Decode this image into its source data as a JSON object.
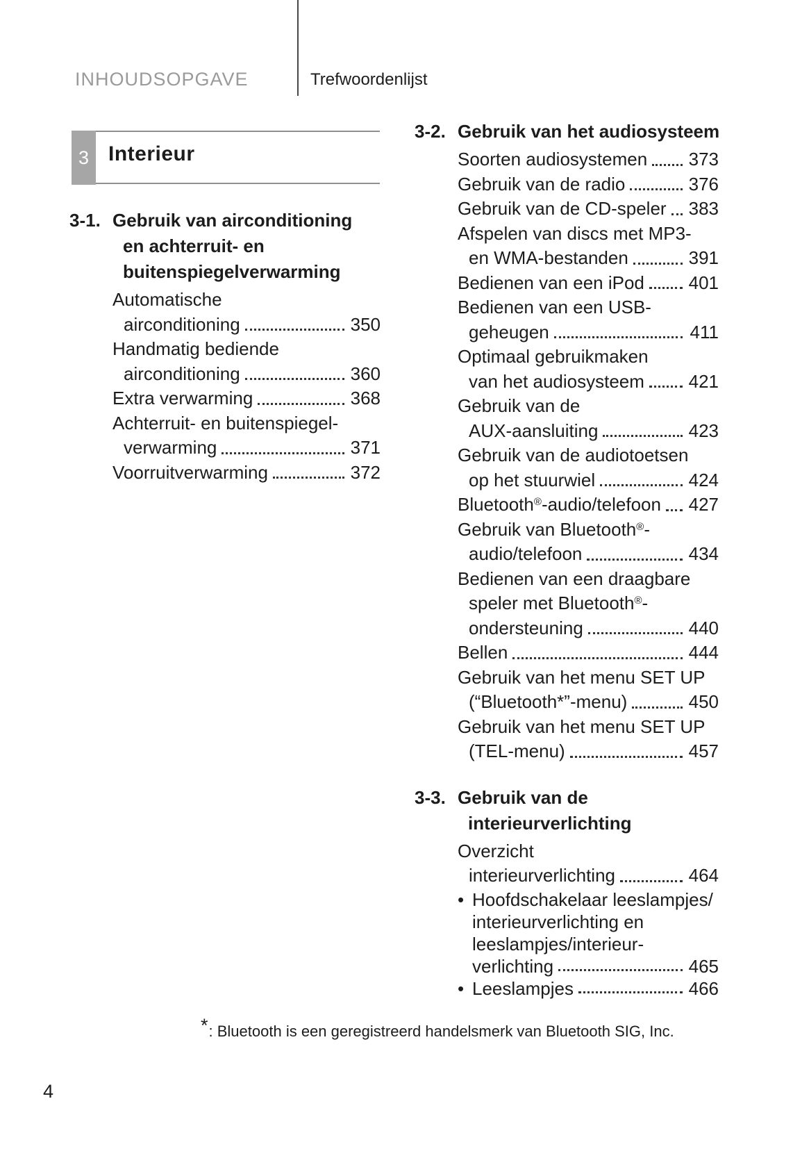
{
  "header": {
    "section_label": "INHOUDSOPGAVE",
    "page_label": "Trefwoordenlijst"
  },
  "chapter_tab": {
    "number": "3",
    "title": "Interieur"
  },
  "sections": [
    {
      "id": "3-1.",
      "title_lines": [
        "Gebruik van airconditioning",
        "en achterruit- en",
        "buitenspiegelverwarming"
      ],
      "entries": [
        {
          "lines": [
            "Automatische",
            "airconditioning"
          ],
          "page": "350"
        },
        {
          "lines": [
            "Handmatig bediende",
            "airconditioning"
          ],
          "page": "360"
        },
        {
          "lines": [
            "Extra verwarming"
          ],
          "page": "368"
        },
        {
          "lines": [
            "Achterruit- en buitenspiegel-",
            "verwarming"
          ],
          "page": "371"
        },
        {
          "lines": [
            "Voorruitverwarming"
          ],
          "page": "372"
        }
      ]
    },
    {
      "id": "3-2.",
      "title_lines": [
        "Gebruik van het audiosysteem"
      ],
      "entries": [
        {
          "lines": [
            "Soorten audiosystemen"
          ],
          "page": "373"
        },
        {
          "lines": [
            "Gebruik van de radio"
          ],
          "page": "376"
        },
        {
          "lines": [
            "Gebruik van de CD-speler"
          ],
          "page": "383"
        },
        {
          "lines": [
            "Afspelen van discs met MP3-",
            "en WMA-bestanden"
          ],
          "page": "391"
        },
        {
          "lines": [
            "Bedienen van een iPod"
          ],
          "page": "401"
        },
        {
          "lines": [
            "Bedienen van een USB-",
            "geheugen"
          ],
          "page": "411"
        },
        {
          "lines": [
            "Optimaal gebruikmaken",
            "van het audiosysteem"
          ],
          "page": "421"
        },
        {
          "lines": [
            "Gebruik van de",
            "AUX-aansluiting"
          ],
          "page": "423"
        },
        {
          "lines": [
            "Gebruik van de audiotoetsen",
            "op het stuurwiel"
          ],
          "page": "424"
        },
        {
          "lines": [
            "Bluetooth®-audio/telefoon"
          ],
          "page": "427"
        },
        {
          "lines": [
            "Gebruik van Bluetooth®-",
            "audio/telefoon"
          ],
          "page": "434"
        },
        {
          "lines": [
            "Bedienen van een draagbare",
            "speler met Bluetooth®-",
            "ondersteuning"
          ],
          "page": "440"
        },
        {
          "lines": [
            "Bellen"
          ],
          "page": "444"
        },
        {
          "lines": [
            "Gebruik van het menu SET UP",
            "(“Bluetooth*”-menu)"
          ],
          "page": "450"
        },
        {
          "lines": [
            "Gebruik van het menu SET UP",
            "(TEL-menu)"
          ],
          "page": "457"
        }
      ]
    },
    {
      "id": "3-3.",
      "title_lines": [
        "Gebruik van de",
        "interieurverlichting"
      ],
      "entries": [
        {
          "lines": [
            "Overzicht",
            "interieurverlichting"
          ],
          "page": "464"
        },
        {
          "bullet": "•",
          "lines": [
            "Hoofdschakelaar leeslampjes/",
            "interieurverlichting en",
            "leeslampjes/interieur-",
            "verlichting"
          ],
          "page": "465"
        },
        {
          "bullet": "•",
          "lines": [
            "Leeslampjes"
          ],
          "page": "466"
        }
      ]
    }
  ],
  "footnote": {
    "marker": "*",
    "text": ": Bluetooth is een geregistreerd handelsmerk van Bluetooth SIG, Inc."
  },
  "page_number": "4",
  "colors": {
    "text": "#1c1c1c",
    "muted_header": "#9a9a9a",
    "chapter_tab_bg": "#a6a6a6",
    "chapter_tab_text": "#ffffff",
    "rule": "#8f8f8f",
    "divider": "#474747",
    "leader_dot": "#333333"
  }
}
